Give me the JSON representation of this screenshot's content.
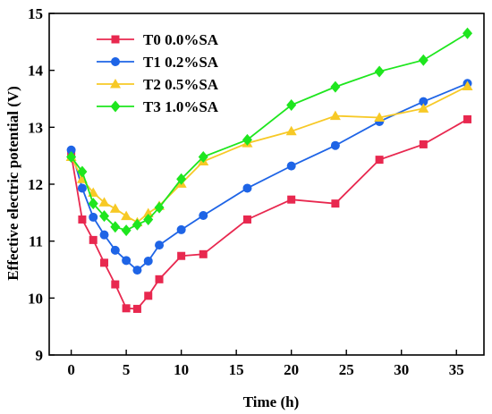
{
  "chart_data": {
    "type": "line",
    "xlabel": "Time (h)",
    "ylabel": "Effective electric potential (V)",
    "xlim": [
      -2,
      37.5
    ],
    "ylim": [
      9,
      15
    ],
    "xticks": [
      0,
      5,
      10,
      15,
      20,
      25,
      30,
      35
    ],
    "yticks": [
      9,
      10,
      11,
      12,
      13,
      14,
      15
    ],
    "grid": false,
    "legend_position": "top-left",
    "x": [
      0,
      1,
      2,
      3,
      4,
      5,
      6,
      7,
      8,
      10,
      12,
      16,
      20,
      24,
      28,
      32,
      36
    ],
    "series": [
      {
        "name": "T0 0.0%SA",
        "color": "#e8284f",
        "marker": "square",
        "values": [
          12.52,
          11.38,
          11.02,
          10.62,
          10.24,
          9.82,
          9.81,
          10.04,
          10.33,
          10.74,
          10.77,
          11.38,
          11.73,
          11.66,
          12.43,
          12.7,
          13.14
        ]
      },
      {
        "name": "T1 0.2%SA",
        "color": "#1e64e6",
        "marker": "circle",
        "values": [
          12.6,
          11.93,
          11.42,
          11.11,
          10.84,
          10.66,
          10.49,
          10.65,
          10.93,
          11.2,
          11.45,
          11.93,
          12.32,
          12.68,
          13.1,
          13.45,
          13.77
        ]
      },
      {
        "name": "T2 0.5%SA",
        "color": "#f7c926",
        "marker": "triangle",
        "values": [
          12.48,
          12.09,
          11.85,
          11.68,
          11.57,
          11.44,
          11.33,
          11.49,
          11.62,
          12.01,
          12.4,
          12.72,
          12.93,
          13.2,
          13.17,
          13.33,
          13.72
        ]
      },
      {
        "name": "T3 1.0%SA",
        "color": "#1ee61e",
        "marker": "diamond",
        "values": [
          12.48,
          12.22,
          11.66,
          11.44,
          11.25,
          11.19,
          11.29,
          11.38,
          11.59,
          12.09,
          12.48,
          12.78,
          13.39,
          13.71,
          13.98,
          14.18,
          14.65
        ]
      }
    ]
  }
}
